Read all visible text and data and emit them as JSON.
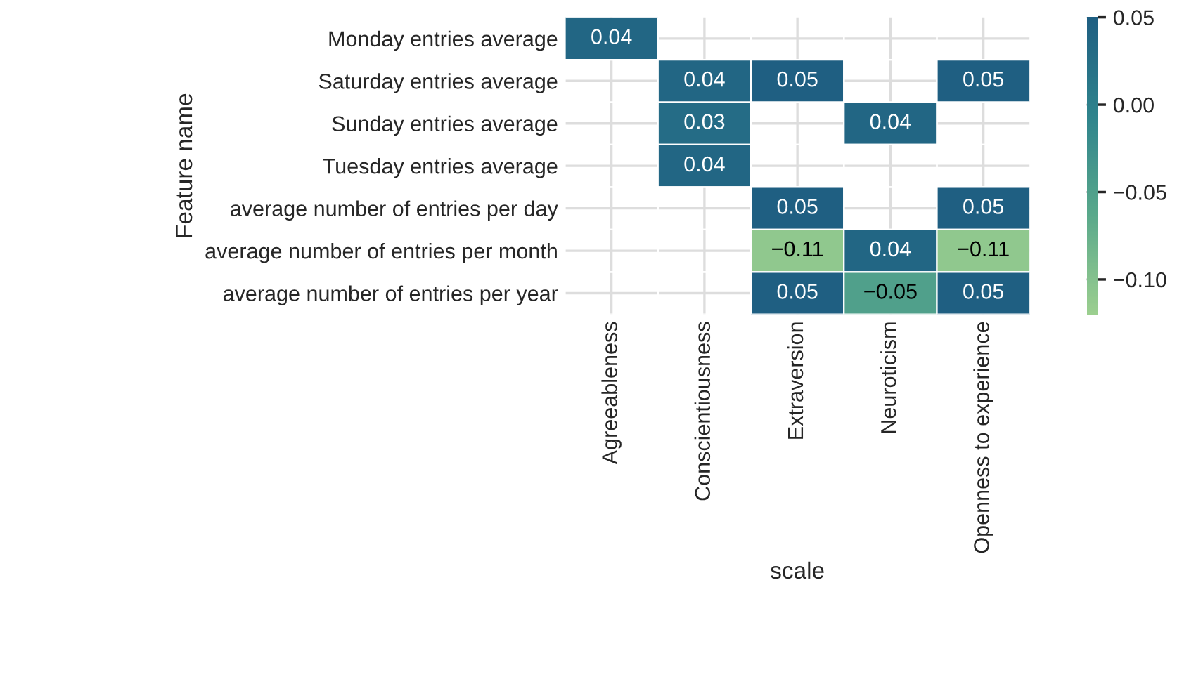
{
  "chart_data": {
    "type": "heatmap",
    "xlabel": "scale",
    "ylabel": "Feature name",
    "categories": [
      "Agreeableness",
      "Conscientiousness",
      "Extraversion",
      "Neuroticism",
      "Openness to experience"
    ],
    "y_categories": [
      "Monday entries average",
      "Saturday entries average",
      "Sunday entries average",
      "Tuesday entries average",
      "average number of entries per day",
      "average number of entries per month",
      "average number of entries per year"
    ],
    "cells": [
      [
        0.04,
        null,
        null,
        null,
        null
      ],
      [
        null,
        0.04,
        0.05,
        null,
        0.05
      ],
      [
        null,
        0.03,
        null,
        0.04,
        null
      ],
      [
        null,
        0.04,
        null,
        null,
        null
      ],
      [
        null,
        null,
        0.05,
        null,
        0.05
      ],
      [
        null,
        null,
        -0.11,
        0.04,
        -0.11
      ],
      [
        null,
        null,
        0.05,
        -0.05,
        0.05
      ]
    ],
    "clim": [
      -0.12,
      0.05
    ],
    "cticks": [
      {
        "value": 0.05,
        "label": "0.05"
      },
      {
        "value": 0,
        "label": "0.00"
      },
      {
        "value": -0.05,
        "label": "−0.05"
      },
      {
        "value": -0.1,
        "label": "−0.10"
      }
    ],
    "data_labels": true,
    "grid": true
  }
}
